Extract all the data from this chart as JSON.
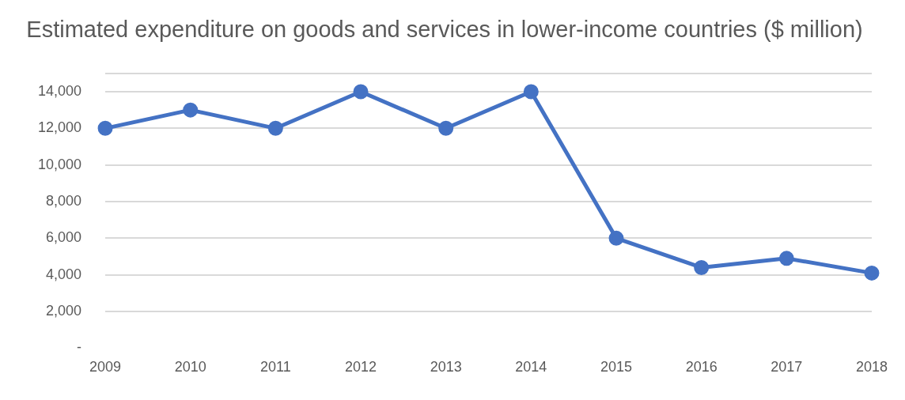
{
  "chart_data": {
    "type": "line",
    "title": "Estimated expenditure on goods and services in lower-income countries ($ million)",
    "categories": [
      "2009",
      "2010",
      "2011",
      "2012",
      "2013",
      "2014",
      "2015",
      "2016",
      "2017",
      "2018"
    ],
    "series": [
      {
        "color": "#4472c4",
        "values": [
          12000,
          13000,
          12000,
          14000,
          12000,
          14000,
          6000,
          4400,
          4900,
          4100
        ]
      }
    ],
    "ylim": [
      0,
      15000
    ],
    "yticks": [
      {
        "value": 0,
        "label": "-"
      },
      {
        "value": 2000,
        "label": "2,000"
      },
      {
        "value": 4000,
        "label": "4,000"
      },
      {
        "value": 6000,
        "label": "6,000"
      },
      {
        "value": 8000,
        "label": "8,000"
      },
      {
        "value": 10000,
        "label": "10,000"
      },
      {
        "value": 12000,
        "label": "12,000"
      },
      {
        "value": 14000,
        "label": "14,000"
      },
      {
        "value": 15000,
        "label": null
      }
    ],
    "grid": "y",
    "legend": false,
    "marker": "circle",
    "line_style": "solid"
  }
}
